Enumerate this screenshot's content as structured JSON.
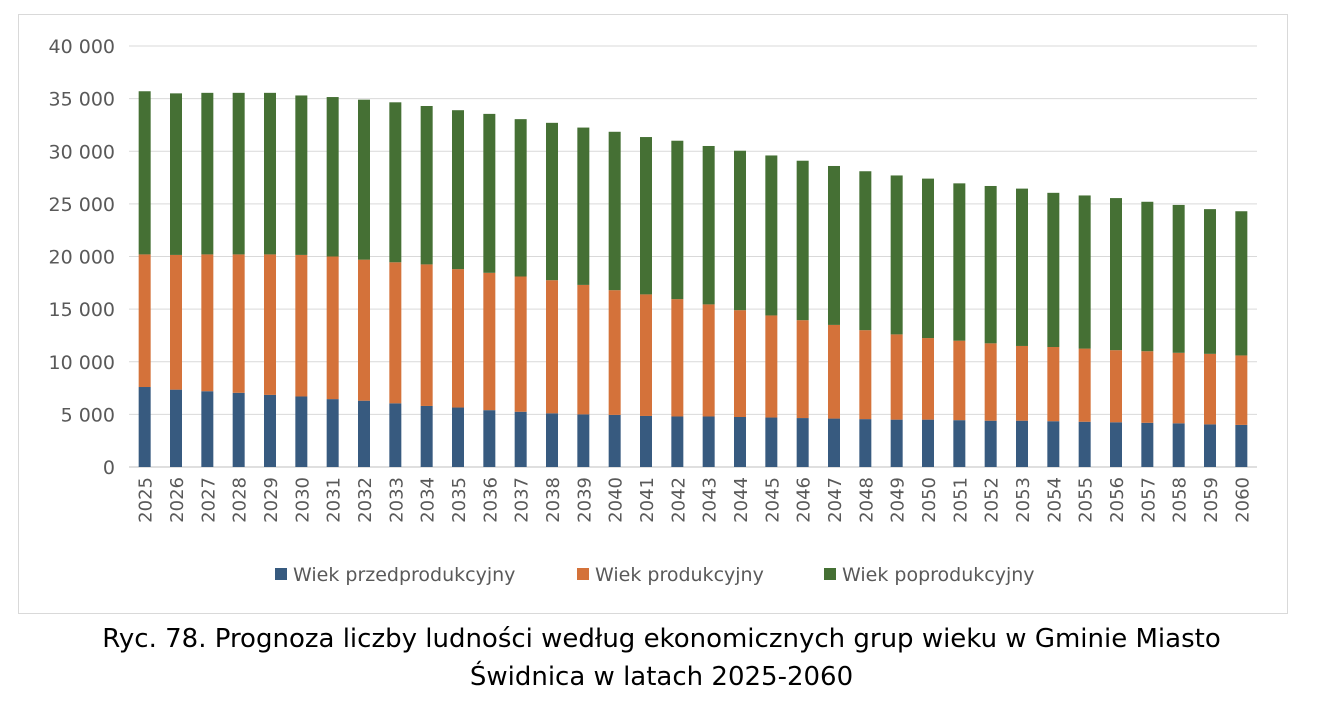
{
  "chart_data": {
    "type": "bar",
    "stacked": true,
    "categories": [
      "2025",
      "2026",
      "2027",
      "2028",
      "2029",
      "2030",
      "2031",
      "2032",
      "2033",
      "2034",
      "2035",
      "2036",
      "2037",
      "2038",
      "2039",
      "2040",
      "2041",
      "2042",
      "2043",
      "2044",
      "2045",
      "2046",
      "2047",
      "2048",
      "2049",
      "2050",
      "2051",
      "2052",
      "2053",
      "2054",
      "2055",
      "2056",
      "2057",
      "2058",
      "2059",
      "2060"
    ],
    "series": [
      {
        "name": "Wiek przedprodukcyjny",
        "color": "#375a7f",
        "values": [
          7600,
          7350,
          7200,
          7050,
          6850,
          6700,
          6450,
          6300,
          6050,
          5800,
          5650,
          5400,
          5250,
          5100,
          5000,
          4950,
          4850,
          4800,
          4800,
          4750,
          4700,
          4650,
          4600,
          4550,
          4500,
          4500,
          4450,
          4400,
          4400,
          4350,
          4300,
          4250,
          4200,
          4150,
          4050,
          4000
        ]
      },
      {
        "name": "Wiek produkcyjny",
        "color": "#d4723a",
        "values": [
          12600,
          12800,
          13000,
          13150,
          13350,
          13450,
          13550,
          13400,
          13400,
          13450,
          13150,
          13050,
          12850,
          12650,
          12300,
          11850,
          11550,
          11150,
          10650,
          10150,
          9700,
          9300,
          8900,
          8450,
          8100,
          7750,
          7550,
          7350,
          7100,
          7050,
          6950,
          6850,
          6800,
          6700,
          6700,
          6600
        ]
      },
      {
        "name": "Wiek poprodukcyjny",
        "color": "#457034",
        "values": [
          15500,
          15350,
          15350,
          15350,
          15350,
          15150,
          15150,
          15200,
          15200,
          15050,
          15100,
          15100,
          14950,
          14950,
          14950,
          15050,
          14950,
          15050,
          15050,
          15150,
          15200,
          15150,
          15100,
          15100,
          15100,
          15150,
          14950,
          14950,
          14950,
          14650,
          14550,
          14450,
          14200,
          14050,
          13750,
          13700
        ]
      }
    ],
    "yticks": [
      "0",
      "5 000",
      "10 000",
      "15 000",
      "20 000",
      "25 000",
      "30 000",
      "35 000",
      "40 000"
    ],
    "ylim": [
      0,
      40000
    ],
    "grid": true,
    "legend_position": "bottom",
    "title": "",
    "xlabel": "",
    "ylabel": ""
  },
  "caption": {
    "line1": "Ryc. 78. Prognoza liczby ludności według ekonomicznych grup wieku w Gminie Miasto",
    "line2": "Świdnica w latach 2025-2060"
  }
}
